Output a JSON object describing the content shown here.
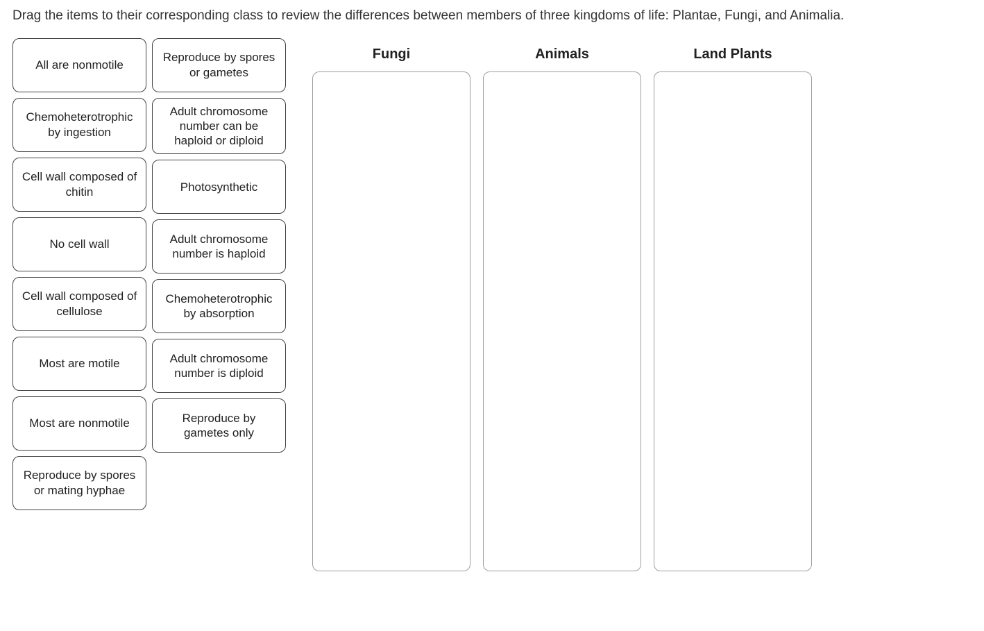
{
  "instructions": "Drag the items to their corresponding class to review the differences between members of three kingdoms of life: Plantae, Fungi, and Animalia.",
  "draggable_items": {
    "column1": [
      "All are nonmotile",
      "Chemoheterotrophic by ingestion",
      "Cell wall composed of chitin",
      "No cell wall",
      "Cell wall composed of cellulose",
      "Most are motile",
      "Most are nonmotile",
      "Reproduce by spores or mating hyphae"
    ],
    "column2": [
      "Reproduce by spores or gametes",
      "Adult chromosome number can be haploid or diploid",
      "Photosynthetic",
      "Adult chromosome number is haploid",
      "Chemoheterotrophic by absorption",
      "Adult chromosome number is diploid",
      "Reproduce by gametes only"
    ]
  },
  "drop_zones": [
    {
      "label": "Fungi"
    },
    {
      "label": "Animals"
    },
    {
      "label": "Land Plants"
    }
  ],
  "styling": {
    "item_border_color": "#424242",
    "item_border_radius": 10,
    "item_width": 193,
    "item_min_height": 78,
    "item_font_size": 17,
    "drop_zone_border_color": "#9e9e9e",
    "drop_zone_width": 228,
    "drop_zone_height": 720,
    "drop_zone_header_font_size": 20,
    "instructions_font_size": 19,
    "background_color": "#ffffff",
    "text_color": "#212121"
  }
}
